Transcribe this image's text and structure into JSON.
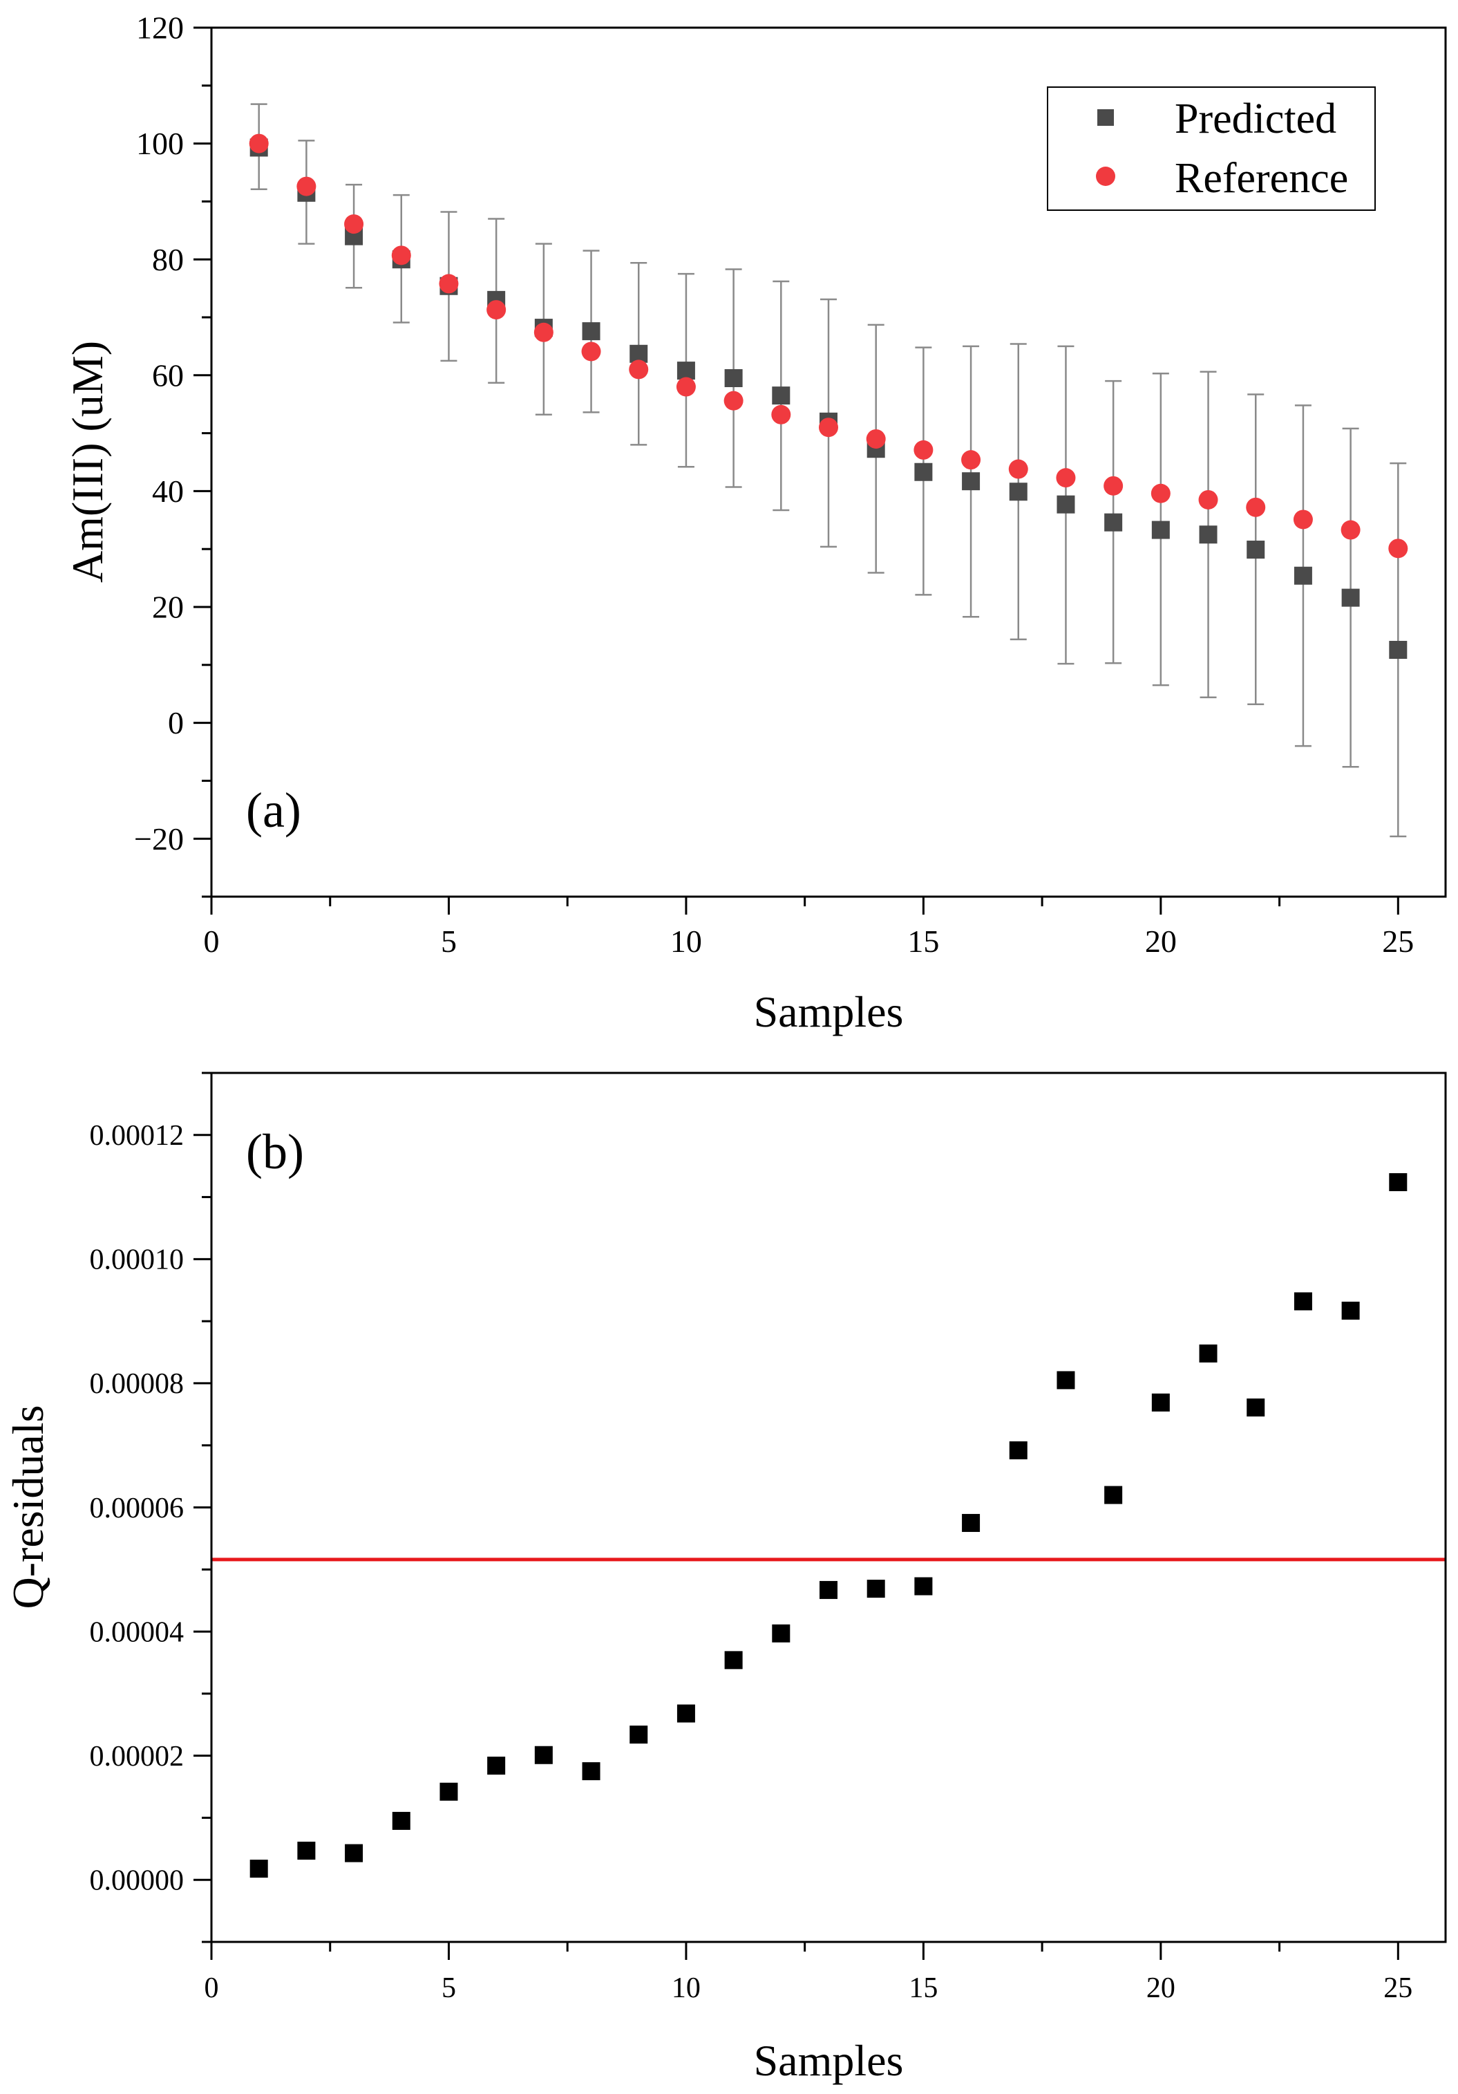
{
  "chart_data": [
    {
      "type": "scatter",
      "panel_label": "(a)",
      "xlabel": "Samples",
      "ylabel": "Am(III) (uM)",
      "xlim": [
        0,
        26
      ],
      "ylim": [
        -30,
        120
      ],
      "xticks": [
        0,
        5,
        10,
        15,
        20,
        25
      ],
      "xtick_labels": [
        "0",
        "5",
        "10",
        "15",
        "20",
        "25"
      ],
      "yticks": [
        -20,
        0,
        20,
        40,
        60,
        80,
        100,
        120
      ],
      "ytick_labels": [
        "−20",
        "0",
        "20",
        "40",
        "60",
        "80",
        "100",
        "120"
      ],
      "legend_position": "top-right",
      "series": [
        {
          "name": "Predicted",
          "marker": "square",
          "color": "#4a4a4a",
          "x": [
            1,
            2,
            3,
            4,
            5,
            6,
            7,
            8,
            9,
            10,
            11,
            12,
            13,
            14,
            15,
            16,
            17,
            18,
            19,
            20,
            21,
            22,
            23,
            24,
            25
          ],
          "y": [
            99.3,
            91.5,
            84.0,
            80.0,
            75.4,
            73.0,
            68.2,
            67.6,
            63.7,
            60.8,
            59.5,
            56.5,
            52.0,
            47.3,
            43.3,
            41.7,
            39.9,
            37.7,
            34.6,
            33.3,
            32.5,
            29.9,
            25.4,
            21.6,
            12.6
          ],
          "err_low": [
            92.1,
            82.7,
            75.1,
            69.1,
            62.5,
            58.7,
            53.2,
            53.6,
            48.0,
            44.2,
            40.7,
            36.7,
            30.4,
            25.9,
            22.1,
            18.3,
            14.4,
            10.2,
            10.3,
            6.5,
            4.4,
            3.2,
            -4.0,
            -7.6,
            -19.6
          ],
          "err_high": [
            106.8,
            100.5,
            92.9,
            91.1,
            88.2,
            87.0,
            82.7,
            81.5,
            79.4,
            77.5,
            78.3,
            76.2,
            73.1,
            68.7,
            64.8,
            65.0,
            65.4,
            65.0,
            59.0,
            60.3,
            60.6,
            56.7,
            54.8,
            50.8,
            44.8
          ]
        },
        {
          "name": "Reference",
          "marker": "circle",
          "color": "#f03a3f",
          "x": [
            1,
            2,
            3,
            4,
            5,
            6,
            7,
            8,
            9,
            10,
            11,
            12,
            13,
            14,
            15,
            16,
            17,
            18,
            19,
            20,
            21,
            22,
            23,
            24,
            25
          ],
          "y": [
            100.0,
            92.6,
            86.1,
            80.7,
            75.8,
            71.3,
            67.4,
            64.1,
            61.0,
            58.0,
            55.6,
            53.2,
            51.0,
            49.0,
            47.1,
            45.4,
            43.8,
            42.3,
            40.9,
            39.6,
            38.5,
            37.2,
            35.1,
            33.3,
            30.1
          ]
        }
      ]
    },
    {
      "type": "scatter",
      "panel_label": "(b)",
      "xlabel": "Samples",
      "ylabel": "Q-residuals",
      "xlim": [
        0,
        26
      ],
      "ylim": [
        -1e-05,
        0.00013
      ],
      "xticks": [
        0,
        5,
        10,
        15,
        20,
        25
      ],
      "xtick_labels": [
        "0",
        "5",
        "10",
        "15",
        "20",
        "25"
      ],
      "yticks": [
        0,
        2e-05,
        4e-05,
        6e-05,
        8e-05,
        0.0001,
        0.00012
      ],
      "ytick_labels": [
        "0.00000",
        "0.00002",
        "0.00004",
        "0.00006",
        "0.00008",
        "0.00010",
        "0.00012"
      ],
      "threshold": {
        "y": 5.16e-05,
        "color": "#e8191c"
      },
      "series": [
        {
          "name": "Q-residuals",
          "marker": "square",
          "color": "#000000",
          "x": [
            1,
            2,
            3,
            4,
            5,
            6,
            7,
            8,
            9,
            10,
            11,
            12,
            13,
            14,
            15,
            16,
            17,
            18,
            19,
            20,
            21,
            22,
            23,
            24,
            25
          ],
          "y": [
            1.8e-06,
            4.7e-06,
            4.3e-06,
            9.5e-06,
            1.42e-05,
            1.84e-05,
            2.01e-05,
            1.75e-05,
            2.34e-05,
            2.68e-05,
            3.54e-05,
            3.97e-05,
            4.67e-05,
            4.69e-05,
            4.73e-05,
            5.75e-05,
            6.92e-05,
            8.05e-05,
            6.2e-05,
            7.69e-05,
            8.48e-05,
            7.61e-05,
            9.32e-05,
            9.17e-05,
            0.0001124
          ]
        }
      ]
    }
  ]
}
